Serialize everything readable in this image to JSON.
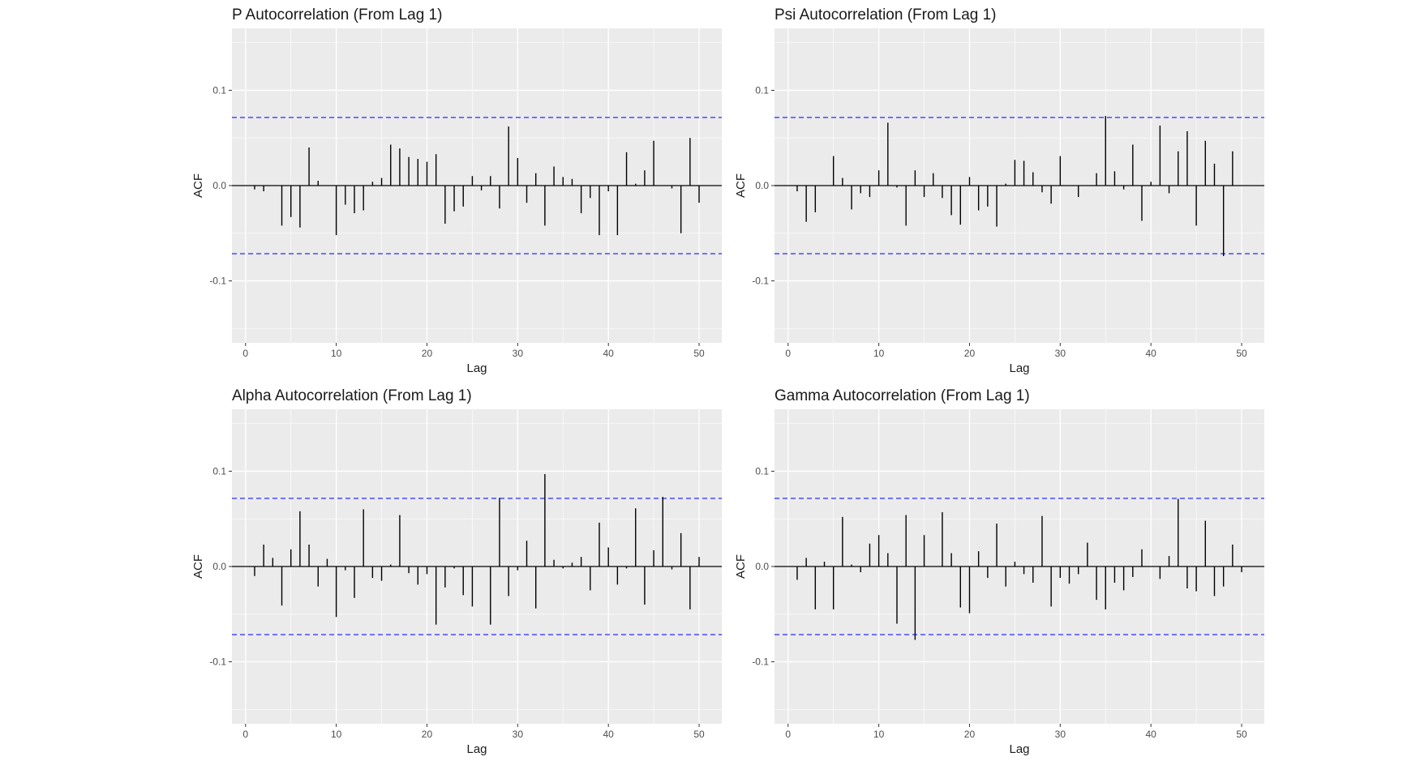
{
  "chart_data": [
    {
      "type": "bar",
      "title": "P Autocorrelation (From Lag 1)",
      "xlabel": "Lag",
      "ylabel": "ACF",
      "xlim": [
        -1.5,
        52.5
      ],
      "ylim": [
        -0.165,
        0.165
      ],
      "xticks": [
        0,
        10,
        20,
        30,
        40,
        50
      ],
      "yticks": [
        -0.1,
        0.0,
        0.1
      ],
      "ytick_labels": [
        "-0.1",
        "0.0",
        "0.1"
      ],
      "ci": 0.0715,
      "x": [
        1,
        2,
        3,
        4,
        5,
        6,
        7,
        8,
        9,
        10,
        11,
        12,
        13,
        14,
        15,
        16,
        17,
        18,
        19,
        20,
        21,
        22,
        23,
        24,
        25,
        26,
        27,
        28,
        29,
        30,
        31,
        32,
        33,
        34,
        35,
        36,
        37,
        38,
        39,
        40,
        41,
        42,
        43,
        44,
        45,
        46,
        47,
        48,
        49,
        50
      ],
      "values": [
        -0.004,
        -0.006,
        0,
        -0.042,
        -0.033,
        -0.044,
        0.04,
        0.005,
        0,
        -0.052,
        -0.02,
        -0.029,
        -0.026,
        0.004,
        0.008,
        0.043,
        0.039,
        0.03,
        0.028,
        0.025,
        0.033,
        -0.04,
        -0.027,
        -0.022,
        0.01,
        -0.005,
        0.01,
        -0.024,
        0.062,
        0.029,
        -0.018,
        0.013,
        -0.042,
        0.02,
        0.009,
        0.007,
        -0.029,
        -0.013,
        -0.052,
        -0.006,
        -0.052,
        0.035,
        0.002,
        0.016,
        0.047,
        0,
        -0.003,
        -0.05,
        0.05,
        -0.018
      ]
    },
    {
      "type": "bar",
      "title": "Psi Autocorrelation (From Lag 1)",
      "xlabel": "Lag",
      "ylabel": "ACF",
      "xlim": [
        -1.5,
        52.5
      ],
      "ylim": [
        -0.165,
        0.165
      ],
      "xticks": [
        0,
        10,
        20,
        30,
        40,
        50
      ],
      "yticks": [
        -0.1,
        0.0,
        0.1
      ],
      "ytick_labels": [
        "-0.1",
        "0.0",
        "0.1"
      ],
      "ci": 0.0715,
      "x": [
        1,
        2,
        3,
        4,
        5,
        6,
        7,
        8,
        9,
        10,
        11,
        12,
        13,
        14,
        15,
        16,
        17,
        18,
        19,
        20,
        21,
        22,
        23,
        24,
        25,
        26,
        27,
        28,
        29,
        30,
        31,
        32,
        33,
        34,
        35,
        36,
        37,
        38,
        39,
        40,
        41,
        42,
        43,
        44,
        45,
        46,
        47,
        48,
        49
      ],
      "values": [
        -0.006,
        -0.038,
        -0.028,
        0,
        0.031,
        0.008,
        -0.025,
        -0.008,
        -0.012,
        0.016,
        0.066,
        -0.002,
        -0.042,
        0.016,
        -0.012,
        0.013,
        -0.013,
        -0.031,
        -0.041,
        0.009,
        -0.026,
        -0.022,
        -0.043,
        0.002,
        0.027,
        0.026,
        0.014,
        -0.007,
        -0.019,
        0.031,
        0,
        -0.012,
        0,
        0.013,
        0.073,
        0.015,
        -0.004,
        0.043,
        -0.037,
        0.004,
        0.063,
        -0.008,
        0.036,
        0.057,
        -0.042,
        0.047,
        0.023,
        -0.074,
        0.036
      ]
    },
    {
      "type": "bar",
      "title": "Alpha Autocorrelation (From Lag 1)",
      "xlabel": "Lag",
      "ylabel": "ACF",
      "xlim": [
        -1.5,
        52.5
      ],
      "ylim": [
        -0.165,
        0.165
      ],
      "xticks": [
        0,
        10,
        20,
        30,
        40,
        50
      ],
      "yticks": [
        -0.1,
        0.0,
        0.1
      ],
      "ytick_labels": [
        "-0.1",
        "0.0",
        "0.1"
      ],
      "ci": 0.0715,
      "x": [
        1,
        2,
        3,
        4,
        5,
        6,
        7,
        8,
        9,
        10,
        11,
        12,
        13,
        14,
        15,
        16,
        17,
        18,
        19,
        20,
        21,
        22,
        23,
        24,
        25,
        26,
        27,
        28,
        29,
        30,
        31,
        32,
        33,
        34,
        35,
        36,
        37,
        38,
        39,
        40,
        41,
        42,
        43,
        44,
        45,
        46,
        47,
        48,
        49,
        50
      ],
      "values": [
        -0.01,
        0.023,
        0.009,
        -0.041,
        0.018,
        0.058,
        0.023,
        -0.021,
        0.008,
        -0.053,
        -0.004,
        -0.033,
        0.06,
        -0.012,
        -0.015,
        0.002,
        0.054,
        -0.007,
        -0.019,
        -0.008,
        -0.061,
        -0.022,
        -0.002,
        -0.03,
        -0.042,
        0,
        -0.061,
        0.072,
        -0.031,
        -0.004,
        0.027,
        -0.044,
        0.097,
        0.007,
        -0.002,
        0.004,
        0.01,
        -0.025,
        0.046,
        0.02,
        -0.019,
        -0.002,
        0.061,
        -0.04,
        0.017,
        0.073,
        -0.003,
        0.035,
        -0.045,
        0.01
      ]
    },
    {
      "type": "bar",
      "title": "Gamma Autocorrelation (From Lag 1)",
      "xlabel": "Lag",
      "ylabel": "ACF",
      "xlim": [
        -1.5,
        52.5
      ],
      "ylim": [
        -0.165,
        0.165
      ],
      "xticks": [
        0,
        10,
        20,
        30,
        40,
        50
      ],
      "yticks": [
        -0.1,
        0.0,
        0.1
      ],
      "ytick_labels": [
        "-0.1",
        "0.0",
        "0.1"
      ],
      "ci": 0.0715,
      "x": [
        1,
        2,
        3,
        4,
        5,
        6,
        7,
        8,
        9,
        10,
        11,
        12,
        13,
        14,
        15,
        16,
        17,
        18,
        19,
        20,
        21,
        22,
        23,
        24,
        25,
        26,
        27,
        28,
        29,
        30,
        31,
        32,
        33,
        34,
        35,
        36,
        37,
        38,
        39,
        40,
        41,
        42,
        43,
        44,
        45,
        46,
        47,
        48,
        49,
        50
      ],
      "values": [
        -0.014,
        0.009,
        -0.045,
        0.005,
        -0.045,
        0.052,
        0.002,
        -0.006,
        0.024,
        0.033,
        0.014,
        -0.06,
        0.054,
        -0.077,
        0.033,
        0,
        0.057,
        0.014,
        -0.043,
        -0.049,
        0.016,
        -0.012,
        0.045,
        -0.021,
        0.005,
        -0.008,
        -0.017,
        0.053,
        -0.042,
        -0.012,
        -0.018,
        -0.008,
        0.025,
        -0.035,
        -0.045,
        -0.017,
        -0.025,
        -0.011,
        0.018,
        0,
        -0.013,
        0.011,
        0.071,
        -0.023,
        -0.026,
        0.048,
        -0.031,
        -0.021,
        0.023,
        -0.006
      ]
    }
  ],
  "colors": {
    "panel_bg": "#ebebeb",
    "grid": "#ffffff",
    "spike": "#000000",
    "ci_line": "#3b3bff"
  }
}
